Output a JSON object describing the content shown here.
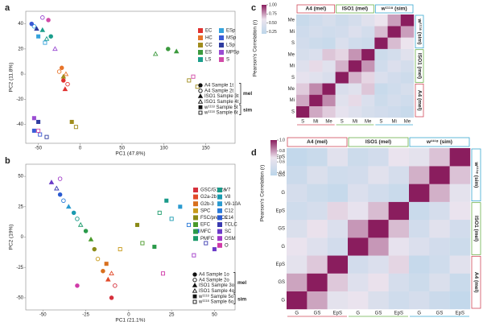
{
  "chart_data": [
    {
      "type": "scatter",
      "panel": "a",
      "xlabel": "PC1 (47.8%)",
      "ylabel": "PC2 (11.8%)",
      "xlim": [
        -65,
        185
      ],
      "ylim": [
        -55,
        50
      ],
      "xticks": [
        -50,
        0,
        50,
        100,
        150
      ],
      "yticks": [
        -40,
        -20,
        0,
        20,
        40
      ],
      "legend_columns": 2,
      "series": [
        {
          "name": "EC",
          "color": "#e0312f",
          "x": [
            -20,
            -15,
            -18
          ],
          "y": [
            -5,
            -8,
            -12
          ],
          "samples": [
            0,
            1,
            2
          ]
        },
        {
          "name": "HC",
          "color": "#e8742a",
          "x": [
            -22,
            -17,
            -25
          ],
          "y": [
            5,
            0,
            2
          ],
          "samples": [
            0,
            3,
            1
          ]
        },
        {
          "name": "CC",
          "color": "#a08c1c",
          "x": [
            -20,
            -10,
            -5,
            130,
            140
          ],
          "y": [
            -2,
            -38,
            -42,
            -5,
            -10
          ],
          "samples": [
            2,
            4,
            5,
            5,
            5
          ]
        },
        {
          "name": "ES",
          "color": "#3c9a3e",
          "x": [
            105,
            115,
            90
          ],
          "y": [
            20,
            18,
            16
          ],
          "samples": [
            0,
            2,
            3
          ]
        },
        {
          "name": "LS",
          "color": "#1b9e8c",
          "x": [
            -45,
            -35,
            -40
          ],
          "y": [
            35,
            30,
            28
          ],
          "samples": [
            2,
            0,
            3
          ]
        },
        {
          "name": "ESp",
          "color": "#35a3dc",
          "x": [
            -55,
            -50,
            -42
          ],
          "y": [
            38,
            30,
            25
          ],
          "samples": [
            1,
            4,
            5
          ]
        },
        {
          "name": "MSp",
          "color": "#3b5bd6",
          "x": [
            -58,
            -55,
            -48
          ],
          "y": [
            40,
            -45,
            -48
          ],
          "samples": [
            0,
            4,
            5
          ]
        },
        {
          "name": "LSp",
          "color": "#2f3ca0",
          "x": [
            -52,
            -50,
            -40
          ],
          "y": [
            36,
            -38,
            -50
          ],
          "samples": [
            2,
            4,
            5
          ]
        },
        {
          "name": "MPSp",
          "color": "#9a4cd2",
          "x": [
            -45,
            -55,
            -30
          ],
          "y": [
            45,
            -35,
            20
          ],
          "samples": [
            1,
            4,
            3
          ]
        },
        {
          "name": "S",
          "color": "#d14ba8",
          "x": [
            -38,
            -50,
            135
          ],
          "y": [
            43,
            -45,
            -2
          ],
          "samples": [
            0,
            5,
            5
          ]
        }
      ],
      "sample_legend": [
        {
          "name": "A4 Sample 1t",
          "marker": "circle",
          "filled": true
        },
        {
          "name": "A4 Sample 2t",
          "marker": "circle",
          "filled": false
        },
        {
          "name": "ISO1 Sample 3t",
          "marker": "triangle",
          "filled": true
        },
        {
          "name": "ISO1 Sample 4t",
          "marker": "triangle",
          "filled": false
        },
        {
          "name": "w¹¹¹⁸ Sample 5t",
          "marker": "square",
          "filled": true
        },
        {
          "name": "w¹¹¹⁸ Sample 6t",
          "marker": "square",
          "filled": false
        }
      ],
      "sample_groups": [
        {
          "label": "mel",
          "from": 0,
          "to": 3
        },
        {
          "label": "sim",
          "from": 4,
          "to": 5
        }
      ]
    },
    {
      "type": "scatter",
      "panel": "b",
      "xlabel": "PC1 (21.1%)",
      "ylabel": "PC2 (19%)",
      "xlim": [
        -60,
        62
      ],
      "ylim": [
        -60,
        60
      ],
      "xticks": [
        -50,
        -25,
        0,
        25,
        50
      ],
      "yticks": [
        -50,
        -25,
        0,
        25,
        50
      ],
      "legend_columns": 2,
      "series": [
        {
          "name": "GSC/G1-2a",
          "color": "#d6303c",
          "x": [
            -10,
            -8
          ],
          "y": [
            -50,
            -40
          ],
          "samples": [
            0,
            1
          ]
        },
        {
          "name": "G2a-2b",
          "color": "#e24a2a",
          "x": [
            -12,
            -10
          ],
          "y": [
            -35,
            -30
          ],
          "samples": [
            2,
            3
          ]
        },
        {
          "name": "G2b-3",
          "color": "#d8701e",
          "x": [
            -15,
            -13
          ],
          "y": [
            -28,
            -22
          ],
          "samples": [
            0,
            4
          ]
        },
        {
          "name": "SPC",
          "color": "#c89a1a",
          "x": [
            -18,
            -5
          ],
          "y": [
            -18,
            -10
          ],
          "samples": [
            1,
            5
          ]
        },
        {
          "name": "FSC/preFCs",
          "color": "#8a8a16",
          "x": [
            -20,
            5
          ],
          "y": [
            -10,
            10
          ],
          "samples": [
            0,
            4
          ]
        },
        {
          "name": "EFC",
          "color": "#4a9a2a",
          "x": [
            -22,
            8
          ],
          "y": [
            -2,
            -5
          ],
          "samples": [
            2,
            5
          ]
        },
        {
          "name": "MFC",
          "color": "#2a9a4a",
          "x": [
            -25,
            15
          ],
          "y": [
            5,
            -8
          ],
          "samples": [
            0,
            4
          ]
        },
        {
          "name": "PMFC",
          "color": "#1a9a6a",
          "x": [
            -28,
            18
          ],
          "y": [
            10,
            20
          ],
          "samples": [
            3,
            5
          ]
        },
        {
          "name": "V7",
          "color": "#1a9a8a",
          "x": [
            -30,
            22
          ],
          "y": [
            15,
            30
          ],
          "samples": [
            1,
            4
          ]
        },
        {
          "name": "V8",
          "color": "#1a9ab0",
          "x": [
            -32,
            25
          ],
          "y": [
            20,
            15
          ],
          "samples": [
            0,
            5
          ]
        },
        {
          "name": "V9-10A",
          "color": "#2a9ad0",
          "x": [
            -35,
            30
          ],
          "y": [
            25,
            25
          ],
          "samples": [
            2,
            4
          ]
        },
        {
          "name": "C12",
          "color": "#2a7ad8",
          "x": [
            -38,
            35
          ],
          "y": [
            30,
            10
          ],
          "samples": [
            1,
            5
          ]
        },
        {
          "name": "C14",
          "color": "#2a5ad0",
          "x": [
            -40,
            40
          ],
          "y": [
            35,
            5
          ],
          "samples": [
            0,
            4
          ]
        },
        {
          "name": "TCLC",
          "color": "#3a3ab0",
          "x": [
            -42,
            45
          ],
          "y": [
            40,
            -5
          ],
          "samples": [
            3,
            5
          ]
        },
        {
          "name": "SC",
          "color": "#6a3ac8",
          "x": [
            -45,
            50
          ],
          "y": [
            45,
            -10
          ],
          "samples": [
            2,
            4
          ]
        },
        {
          "name": "OSM",
          "color": "#a03ac8",
          "x": [
            -40,
            38
          ],
          "y": [
            48,
            -15
          ],
          "samples": [
            1,
            5
          ]
        },
        {
          "name": "O",
          "color": "#d03aa8",
          "x": [
            -30,
            20
          ],
          "y": [
            -40,
            -30
          ],
          "samples": [
            0,
            5
          ]
        }
      ],
      "sample_legend": [
        {
          "name": "A4 Sample 1o",
          "marker": "circle",
          "filled": true
        },
        {
          "name": "A4 Sample 2o",
          "marker": "circle",
          "filled": false
        },
        {
          "name": "ISO1 Sample 3o",
          "marker": "triangle",
          "filled": true
        },
        {
          "name": "ISO1 Sample 4o",
          "marker": "triangle",
          "filled": false
        },
        {
          "name": "w¹¹¹⁸ Sample 5o",
          "marker": "square",
          "filled": true
        },
        {
          "name": "w¹¹¹⁸ Sample 6o",
          "marker": "square",
          "filled": false
        }
      ],
      "sample_groups": [
        {
          "label": "mel",
          "from": 0,
          "to": 3
        },
        {
          "label": "sim",
          "from": 4,
          "to": 5
        }
      ]
    },
    {
      "type": "heatmap",
      "panel": "c",
      "colorbar_label": "Pearson's Correlation (r)",
      "zlim": [
        0.2,
        1
      ],
      "zticks": [
        {
          "value": 0.25,
          "label": "0.25"
        },
        {
          "value": 0.5,
          "label": "0.50"
        },
        {
          "value": 0.75,
          "label": "0.75"
        },
        {
          "value": 1,
          "label": "1.00"
        }
      ],
      "colors": [
        "#bcd6ea",
        "#ece4ee",
        "#8a1d5e"
      ],
      "col_labels": [
        "S",
        "Mi",
        "Me",
        "S",
        "Mi",
        "Me",
        "S",
        "Mi",
        "Me"
      ],
      "row_labels": [
        "S",
        "Mi",
        "Me",
        "S",
        "Mi",
        "Me",
        "S",
        "Mi",
        "Me"
      ],
      "groups": [
        {
          "label": "A4 (mel)",
          "color": "#d04a5a",
          "size": 3
        },
        {
          "label": "ISO1 (mel)",
          "color": "#6ab04a",
          "size": 3
        },
        {
          "label": "w¹¹¹⁸ (sim)",
          "color": "#3aa8d0",
          "size": 3
        }
      ],
      "matrix": [
        [
          1,
          0.72,
          0.65,
          0.55,
          0.48,
          0.42,
          0.38,
          0.35,
          0.3
        ],
        [
          0.72,
          1,
          0.78,
          0.5,
          0.62,
          0.45,
          0.33,
          0.4,
          0.36
        ],
        [
          0.65,
          0.78,
          1,
          0.44,
          0.5,
          0.66,
          0.3,
          0.36,
          0.42
        ],
        [
          0.55,
          0.5,
          0.44,
          1,
          0.7,
          0.63,
          0.45,
          0.38,
          0.34
        ],
        [
          0.48,
          0.62,
          0.5,
          0.7,
          1,
          0.76,
          0.37,
          0.47,
          0.4
        ],
        [
          0.42,
          0.45,
          0.66,
          0.63,
          0.76,
          1,
          0.33,
          0.39,
          0.5
        ],
        [
          0.38,
          0.33,
          0.3,
          0.45,
          0.37,
          0.33,
          1,
          0.68,
          0.6
        ],
        [
          0.35,
          0.4,
          0.36,
          0.38,
          0.47,
          0.39,
          0.68,
          1,
          0.74
        ],
        [
          0.3,
          0.36,
          0.42,
          0.34,
          0.4,
          0.5,
          0.6,
          0.74,
          1
        ]
      ]
    },
    {
      "type": "heatmap",
      "panel": "d",
      "colorbar_label": "Pearson's Correlation (r)",
      "zlim": [
        0.35,
        1
      ],
      "zticks": [
        0.4,
        0.6,
        0.8,
        {
          "value": 1,
          "label": "1.0"
        }
      ],
      "colors": [
        "#bcd6ea",
        "#ece4ee",
        "#8a1d5e"
      ],
      "col_labels": [
        "G",
        "GS",
        "EpS",
        "G",
        "GS",
        "EpS",
        "G",
        "GS",
        "EpS"
      ],
      "row_labels": [
        "G",
        "GS",
        "EpS",
        "G",
        "GS",
        "EpS",
        "G",
        "GS",
        "EpS"
      ],
      "groups": [
        {
          "label": "A4 (mel)",
          "color": "#d04a5a",
          "size": 3
        },
        {
          "label": "ISO1 (mel)",
          "color": "#6ab04a",
          "size": 3
        },
        {
          "label": "w¹¹¹⁸ (sim)",
          "color": "#3aa8d0",
          "size": 3
        }
      ],
      "matrix": [
        [
          1,
          0.78,
          0.62,
          0.66,
          0.55,
          0.48,
          0.52,
          0.45,
          0.4
        ],
        [
          0.78,
          1,
          0.72,
          0.58,
          0.68,
          0.52,
          0.46,
          0.55,
          0.44
        ],
        [
          0.62,
          0.72,
          1,
          0.5,
          0.56,
          0.7,
          0.42,
          0.48,
          0.6
        ],
        [
          0.66,
          0.58,
          0.5,
          1,
          0.8,
          0.64,
          0.56,
          0.5,
          0.46
        ],
        [
          0.55,
          0.68,
          0.56,
          0.8,
          1,
          0.74,
          0.49,
          0.6,
          0.5
        ],
        [
          0.48,
          0.52,
          0.7,
          0.64,
          0.74,
          1,
          0.44,
          0.52,
          0.66
        ],
        [
          0.52,
          0.46,
          0.42,
          0.56,
          0.49,
          0.44,
          1,
          0.76,
          0.62
        ],
        [
          0.45,
          0.55,
          0.48,
          0.5,
          0.6,
          0.52,
          0.76,
          1,
          0.73
        ],
        [
          0.4,
          0.44,
          0.6,
          0.46,
          0.5,
          0.66,
          0.62,
          0.73,
          1
        ]
      ]
    }
  ]
}
